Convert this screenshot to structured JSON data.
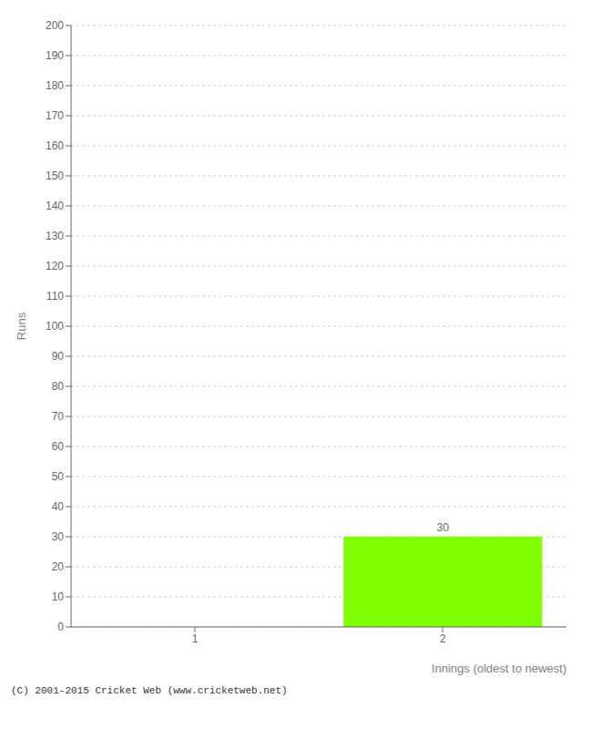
{
  "chart_data": {
    "type": "bar",
    "xlabel": "Innings (oldest to newest)",
    "ylabel": "Runs",
    "categories": [
      1,
      2
    ],
    "values": [
      0,
      30
    ],
    "color": "#7fff00",
    "ylim": [
      0,
      200
    ],
    "yticks": [
      0,
      10,
      20,
      30,
      40,
      50,
      60,
      70,
      80,
      90,
      100,
      110,
      120,
      130,
      140,
      150,
      160,
      170,
      180,
      190,
      200
    ],
    "grid": true,
    "data_labels": true,
    "annotations": [
      "(C) 2001-2015 Cricket Web (www.cricketweb.net)"
    ]
  }
}
